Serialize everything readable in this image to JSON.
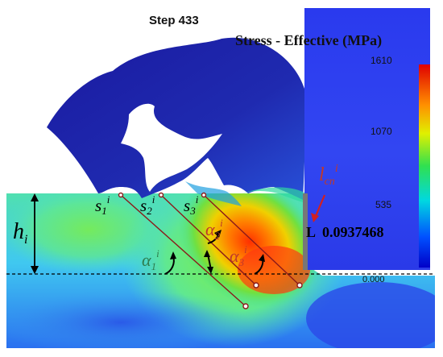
{
  "step_label": "Step  433",
  "legend": {
    "title": "Stress - Effective (MPa)",
    "max_label": "1610",
    "mid_label": "1070",
    "low_label": "535",
    "min_label": "0.000"
  },
  "annotations": {
    "contact_length_var": "l",
    "contact_length_sub": "cn",
    "contact_length_sup": "i",
    "contact_length_value_prefix": "L",
    "contact_length_value": "0.0937468",
    "height_var": "h",
    "height_sub": "i",
    "s1": {
      "var": "s",
      "sub": "1",
      "sup": "i"
    },
    "s2": {
      "var": "s",
      "sub": "2",
      "sup": "i"
    },
    "s3": {
      "var": "s",
      "sub": "3",
      "sup": "i"
    },
    "a1": {
      "var": "α",
      "sub": "1",
      "sup": "i"
    },
    "a2": {
      "var": "α",
      "sub": "2",
      "sup": "i"
    },
    "a3": {
      "var": "α",
      "sub": "3",
      "sup": "i"
    }
  },
  "colors": {
    "tool_blue": "#1a1aa8",
    "panel_blue": "#3344ee",
    "annotation_red": "#c0392b",
    "annotation_green": "#2e7d4f",
    "line_color": "#8b1a1a"
  }
}
